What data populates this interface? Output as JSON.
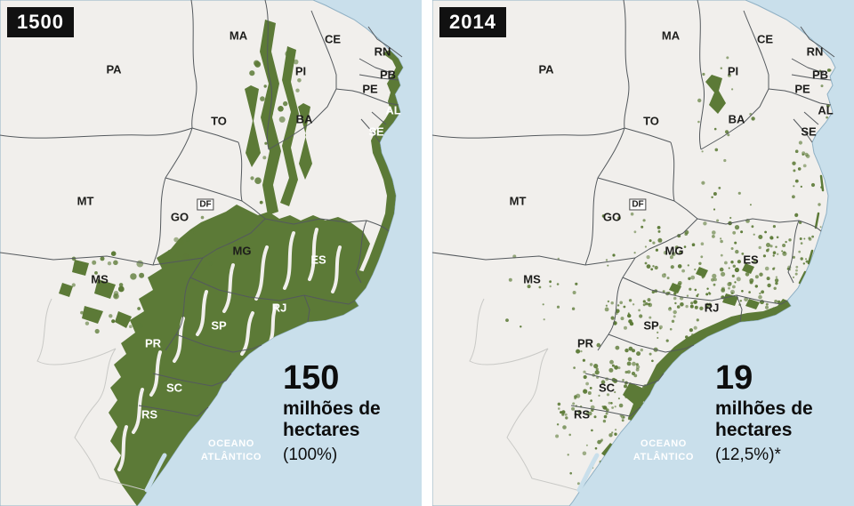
{
  "panels": [
    {
      "year": "1500",
      "value": "150",
      "unit_lines": [
        "milhões de",
        "hectares"
      ],
      "percent": "(100%)"
    },
    {
      "year": "2014",
      "value": "19",
      "unit_lines": [
        "milhões de",
        "hectares"
      ],
      "percent": "(12,5%)*"
    }
  ],
  "ocean": {
    "line1": "OCEANO",
    "line2": "ATLÂNTICO"
  },
  "states": [
    {
      "id": "PA",
      "label": "PA"
    },
    {
      "id": "MA",
      "label": "MA"
    },
    {
      "id": "CE",
      "label": "CE"
    },
    {
      "id": "RN",
      "label": "RN"
    },
    {
      "id": "PB",
      "label": "PB"
    },
    {
      "id": "PE",
      "label": "PE"
    },
    {
      "id": "AL",
      "label": "AL"
    },
    {
      "id": "SE",
      "label": "SE"
    },
    {
      "id": "PI",
      "label": "PI"
    },
    {
      "id": "TO",
      "label": "TO"
    },
    {
      "id": "BA",
      "label": "BA"
    },
    {
      "id": "MT",
      "label": "MT"
    },
    {
      "id": "GO",
      "label": "GO"
    },
    {
      "id": "DF",
      "label": "DF"
    },
    {
      "id": "MG",
      "label": "MG"
    },
    {
      "id": "ES",
      "label": "ES"
    },
    {
      "id": "MS",
      "label": "MS"
    },
    {
      "id": "SP",
      "label": "SP"
    },
    {
      "id": "RJ",
      "label": "RJ"
    },
    {
      "id": "PR",
      "label": "PR"
    },
    {
      "id": "SC",
      "label": "SC"
    },
    {
      "id": "RS",
      "label": "RS"
    }
  ],
  "colors": {
    "forest": "#5c7a37",
    "ocean": "#c9dfeb",
    "land": "#f1efec",
    "badge_bg": "#111111",
    "badge_text": "#ffffff"
  }
}
